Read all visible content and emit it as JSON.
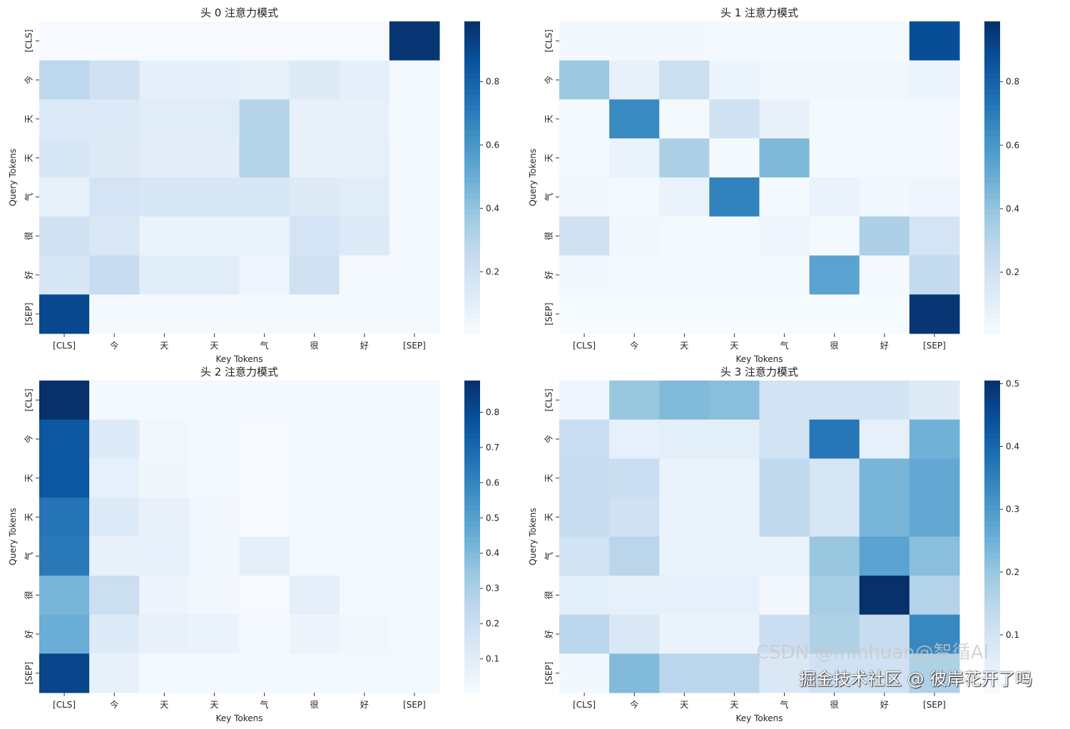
{
  "chart_data": [
    {
      "type": "heatmap",
      "title": "头 0 注意力模式",
      "xlabel": "Key Tokens",
      "ylabel": "Query Tokens",
      "x_tick_labels": [
        "[CLS]",
        "今",
        "天",
        "天",
        "气",
        "很",
        "好",
        "[SEP]"
      ],
      "y_tick_labels": [
        "[CLS]",
        "今",
        "天",
        "天",
        "气",
        "很",
        "好",
        "[SEP]"
      ],
      "colormap": "Blues",
      "color_range": [
        0.005,
        0.99
      ],
      "colorbar_ticks": [
        "0.2",
        "0.4",
        "0.6",
        "0.8"
      ],
      "values": [
        [
          0.01,
          0.01,
          0.01,
          0.01,
          0.01,
          0.01,
          0.01,
          0.97
        ],
        [
          0.28,
          0.2,
          0.1,
          0.1,
          0.09,
          0.13,
          0.1,
          0.02
        ],
        [
          0.14,
          0.14,
          0.12,
          0.12,
          0.3,
          0.08,
          0.08,
          0.02
        ],
        [
          0.16,
          0.13,
          0.11,
          0.11,
          0.3,
          0.08,
          0.09,
          0.02
        ],
        [
          0.09,
          0.18,
          0.16,
          0.16,
          0.16,
          0.13,
          0.12,
          0.02
        ],
        [
          0.2,
          0.15,
          0.07,
          0.07,
          0.07,
          0.18,
          0.14,
          0.02
        ],
        [
          0.16,
          0.24,
          0.12,
          0.12,
          0.05,
          0.2,
          0.02,
          0.02
        ],
        [
          0.9,
          0.02,
          0.02,
          0.02,
          0.02,
          0.02,
          0.02,
          0.02
        ]
      ]
    },
    {
      "type": "heatmap",
      "title": "头 1 注意力模式",
      "xlabel": "Key Tokens",
      "ylabel": "Query Tokens",
      "x_tick_labels": [
        "[CLS]",
        "今",
        "天",
        "天",
        "气",
        "很",
        "好",
        "[SEP]"
      ],
      "y_tick_labels": [
        "[CLS]",
        "今",
        "天",
        "天",
        "气",
        "很",
        "好",
        "[SEP]"
      ],
      "colormap": "Blues",
      "color_range": [
        0.007,
        0.99
      ],
      "colorbar_ticks": [
        "0.2",
        "0.4",
        "0.6",
        "0.8"
      ],
      "values": [
        [
          0.03,
          0.03,
          0.03,
          0.02,
          0.02,
          0.02,
          0.02,
          0.88
        ],
        [
          0.38,
          0.08,
          0.22,
          0.06,
          0.04,
          0.04,
          0.04,
          0.06
        ],
        [
          0.02,
          0.65,
          0.02,
          0.2,
          0.08,
          0.02,
          0.02,
          0.02
        ],
        [
          0.02,
          0.07,
          0.33,
          0.02,
          0.45,
          0.02,
          0.02,
          0.02
        ],
        [
          0.04,
          0.02,
          0.07,
          0.68,
          0.02,
          0.07,
          0.04,
          0.05
        ],
        [
          0.2,
          0.04,
          0.02,
          0.02,
          0.05,
          0.02,
          0.33,
          0.18
        ],
        [
          0.03,
          0.02,
          0.02,
          0.02,
          0.02,
          0.55,
          0.02,
          0.26
        ],
        [
          0.01,
          0.01,
          0.01,
          0.01,
          0.01,
          0.01,
          0.01,
          0.97
        ]
      ]
    },
    {
      "type": "heatmap",
      "title": "头 2 注意力模式",
      "xlabel": "Key Tokens",
      "ylabel": "Query Tokens",
      "x_tick_labels": [
        "[CLS]",
        "今",
        "天",
        "天",
        "气",
        "很",
        "好",
        "[SEP]"
      ],
      "y_tick_labels": [
        "[CLS]",
        "今",
        "天",
        "天",
        "气",
        "很",
        "好",
        "[SEP]"
      ],
      "colormap": "Blues",
      "color_range": [
        0.004,
        0.89
      ],
      "colorbar_ticks": [
        "0.1",
        "0.2",
        "0.3",
        "0.4",
        "0.5",
        "0.6",
        "0.7",
        "0.8"
      ],
      "values": [
        [
          0.89,
          0.02,
          0.02,
          0.02,
          0.02,
          0.02,
          0.02,
          0.02
        ],
        [
          0.76,
          0.12,
          0.03,
          0.02,
          0.01,
          0.02,
          0.02,
          0.02
        ],
        [
          0.76,
          0.08,
          0.04,
          0.02,
          0.01,
          0.02,
          0.02,
          0.02
        ],
        [
          0.66,
          0.12,
          0.07,
          0.03,
          0.01,
          0.02,
          0.02,
          0.02
        ],
        [
          0.64,
          0.07,
          0.08,
          0.03,
          0.09,
          0.02,
          0.02,
          0.02
        ],
        [
          0.42,
          0.2,
          0.05,
          0.03,
          0.01,
          0.09,
          0.02,
          0.02
        ],
        [
          0.45,
          0.12,
          0.07,
          0.06,
          0.02,
          0.05,
          0.03,
          0.02
        ],
        [
          0.82,
          0.07,
          0.02,
          0.02,
          0.02,
          0.02,
          0.02,
          0.02
        ]
      ]
    },
    {
      "type": "heatmap",
      "title": "头 3 注意力模式",
      "xlabel": "Key Tokens",
      "ylabel": "Query Tokens",
      "x_tick_labels": [
        "[CLS]",
        "今",
        "天",
        "天",
        "气",
        "很",
        "好",
        "[SEP]"
      ],
      "y_tick_labels": [
        "[CLS]",
        "今",
        "天",
        "天",
        "气",
        "很",
        "好",
        "[SEP]"
      ],
      "colormap": "Blues",
      "color_range": [
        0.008,
        0.505
      ],
      "colorbar_ticks": [
        "0.1",
        "0.2",
        "0.3",
        "0.4",
        "0.5"
      ],
      "values": [
        [
          0.03,
          0.2,
          0.23,
          0.22,
          0.1,
          0.1,
          0.1,
          0.07
        ],
        [
          0.12,
          0.05,
          0.06,
          0.06,
          0.1,
          0.37,
          0.05,
          0.25
        ],
        [
          0.13,
          0.12,
          0.04,
          0.04,
          0.14,
          0.09,
          0.24,
          0.27
        ],
        [
          0.13,
          0.11,
          0.04,
          0.04,
          0.14,
          0.09,
          0.24,
          0.27
        ],
        [
          0.1,
          0.15,
          0.04,
          0.04,
          0.04,
          0.2,
          0.28,
          0.22
        ],
        [
          0.06,
          0.05,
          0.05,
          0.05,
          0.02,
          0.18,
          0.51,
          0.16
        ],
        [
          0.15,
          0.08,
          0.04,
          0.04,
          0.12,
          0.17,
          0.13,
          0.34
        ],
        [
          0.02,
          0.23,
          0.15,
          0.15,
          0.08,
          0.11,
          0.11,
          0.17
        ]
      ]
    }
  ],
  "watermarks": [
    "掘金技术社区 @ 彼岸花开了吗",
    "CSDN @minhuan@智循AI"
  ]
}
